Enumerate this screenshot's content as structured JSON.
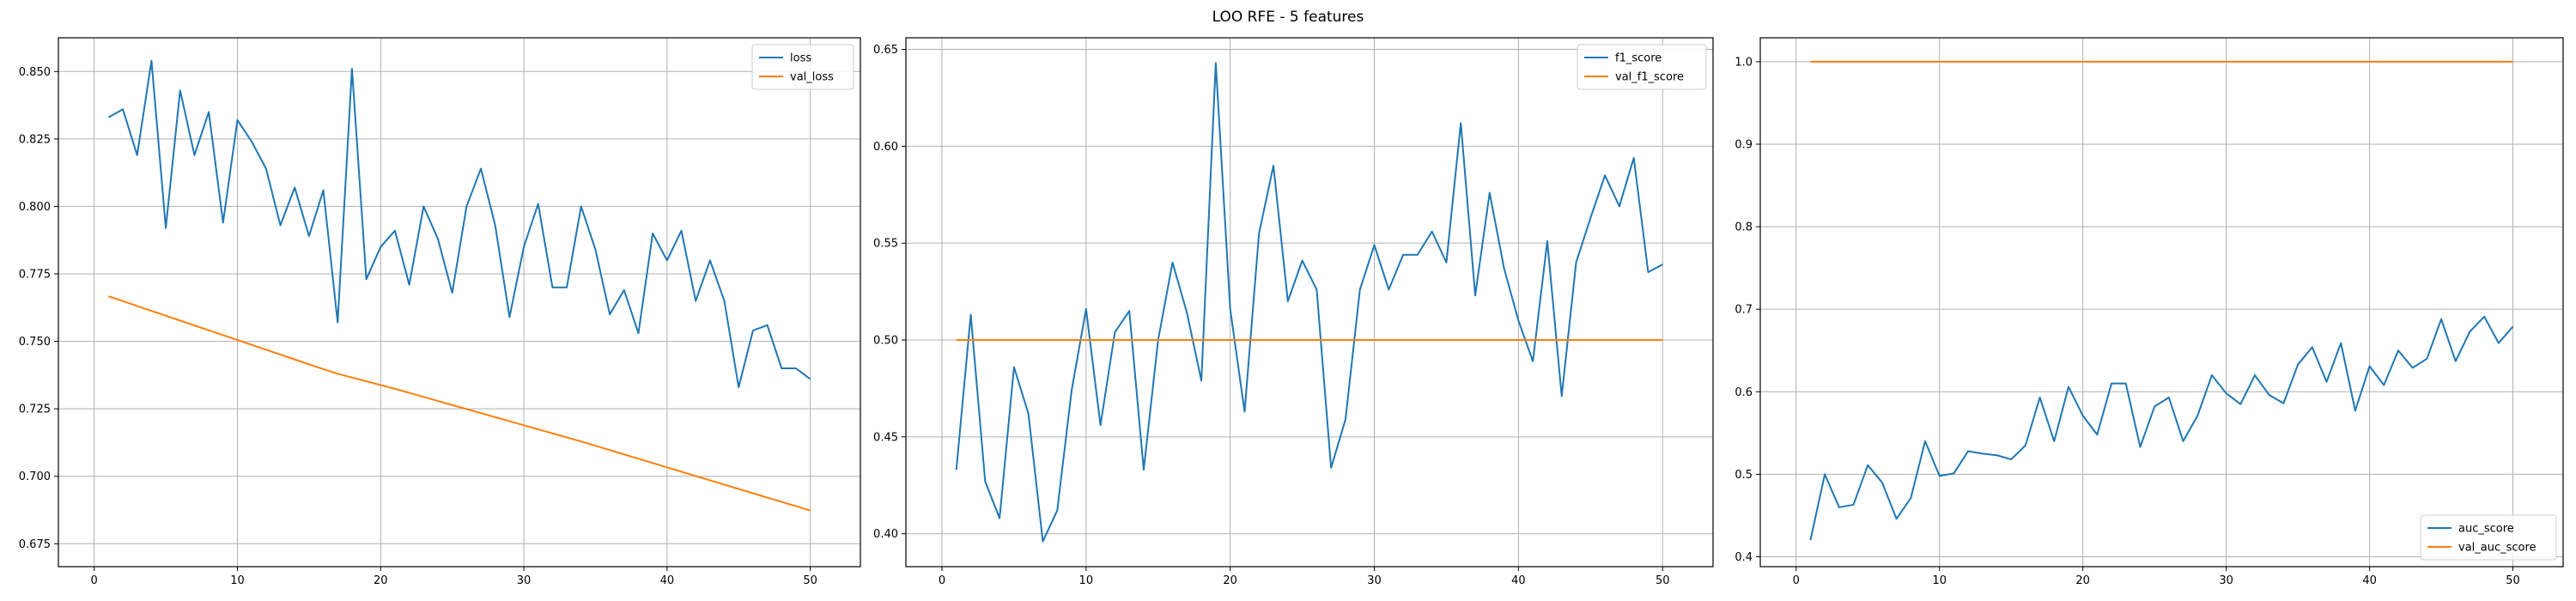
{
  "figure": {
    "title": "LOO RFE - 5 features"
  },
  "colors": {
    "train": "#1f77b4",
    "val": "#ff7f0e",
    "grid": "#b0b0b0",
    "axis": "#000000"
  },
  "chart_data": [
    {
      "type": "line",
      "title": "",
      "xlabel": "",
      "ylabel": "",
      "xlim": [
        -2.5,
        53.5
      ],
      "ylim": [
        0.6665,
        0.8625
      ],
      "xticks": [
        0,
        10,
        20,
        30,
        40,
        50
      ],
      "yticks": [
        0.675,
        0.7,
        0.725,
        0.75,
        0.775,
        0.8,
        0.825,
        0.85
      ],
      "ytick_labels": [
        "0.675",
        "0.700",
        "0.725",
        "0.750",
        "0.775",
        "0.800",
        "0.825",
        "0.850"
      ],
      "grid": true,
      "legend_loc": "top-right",
      "x": [
        1,
        2,
        3,
        4,
        5,
        6,
        7,
        8,
        9,
        10,
        11,
        12,
        13,
        14,
        15,
        16,
        17,
        18,
        19,
        20,
        21,
        22,
        23,
        24,
        25,
        26,
        27,
        28,
        29,
        30,
        31,
        32,
        33,
        34,
        35,
        36,
        37,
        38,
        39,
        40,
        41,
        42,
        43,
        44,
        45,
        46,
        47,
        48,
        49,
        50
      ],
      "series": [
        {
          "name": "loss",
          "color": "#1f77b4",
          "values": [
            0.833,
            0.836,
            0.819,
            0.854,
            0.792,
            0.843,
            0.819,
            0.835,
            0.794,
            0.832,
            0.824,
            0.814,
            0.793,
            0.807,
            0.789,
            0.806,
            0.757,
            0.851,
            0.773,
            0.785,
            0.791,
            0.771,
            0.8,
            0.788,
            0.768,
            0.8,
            0.814,
            0.793,
            0.759,
            0.785,
            0.801,
            0.77,
            0.77,
            0.8,
            0.784,
            0.76,
            0.769,
            0.753,
            0.79,
            0.78,
            0.791,
            0.765,
            0.78,
            0.765,
            0.733,
            0.754,
            0.756,
            0.74,
            0.74,
            0.736
          ]
        },
        {
          "name": "val_loss",
          "color": "#ff7f0e",
          "values": [
            0.7667,
            0.7649,
            0.7631,
            0.7613,
            0.7595,
            0.7577,
            0.7559,
            0.7541,
            0.7523,
            0.7505,
            0.7487,
            0.7469,
            0.7451,
            0.7433,
            0.7415,
            0.7397,
            0.738,
            0.7366,
            0.7352,
            0.7338,
            0.7324,
            0.7309,
            0.7294,
            0.7279,
            0.7264,
            0.7249,
            0.7234,
            0.7219,
            0.7204,
            0.7189,
            0.7174,
            0.7159,
            0.7144,
            0.7129,
            0.7113,
            0.7097,
            0.7081,
            0.7065,
            0.7049,
            0.7033,
            0.7017,
            0.7001,
            0.6985,
            0.6969,
            0.6953,
            0.6937,
            0.6921,
            0.6905,
            0.6889,
            0.6873
          ]
        }
      ]
    },
    {
      "type": "line",
      "title": "",
      "xlabel": "",
      "ylabel": "",
      "xlim": [
        -2.5,
        53.5
      ],
      "ylim": [
        0.383,
        0.656
      ],
      "xticks": [
        0,
        10,
        20,
        30,
        40,
        50
      ],
      "yticks": [
        0.4,
        0.45,
        0.5,
        0.55,
        0.6,
        0.65
      ],
      "ytick_labels": [
        "0.40",
        "0.45",
        "0.50",
        "0.55",
        "0.60",
        "0.65"
      ],
      "grid": true,
      "legend_loc": "top-right",
      "x": [
        1,
        2,
        3,
        4,
        5,
        6,
        7,
        8,
        9,
        10,
        11,
        12,
        13,
        14,
        15,
        16,
        17,
        18,
        19,
        20,
        21,
        22,
        23,
        24,
        25,
        26,
        27,
        28,
        29,
        30,
        31,
        32,
        33,
        34,
        35,
        36,
        37,
        38,
        39,
        40,
        41,
        42,
        43,
        44,
        45,
        46,
        47,
        48,
        49,
        50
      ],
      "series": [
        {
          "name": "f1_score",
          "color": "#1f77b4",
          "values": [
            0.433,
            0.513,
            0.427,
            0.408,
            0.486,
            0.462,
            0.396,
            0.412,
            0.474,
            0.516,
            0.456,
            0.504,
            0.515,
            0.433,
            0.5,
            0.54,
            0.514,
            0.479,
            0.643,
            0.516,
            0.463,
            0.555,
            0.59,
            0.52,
            0.541,
            0.526,
            0.434,
            0.459,
            0.526,
            0.549,
            0.526,
            0.544,
            0.544,
            0.556,
            0.54,
            0.612,
            0.523,
            0.576,
            0.537,
            0.51,
            0.489,
            0.551,
            0.471,
            0.54,
            0.563,
            0.585,
            0.569,
            0.594,
            0.535,
            0.539
          ]
        },
        {
          "name": "val_f1_score",
          "color": "#ff7f0e",
          "values": [
            0.5,
            0.5,
            0.5,
            0.5,
            0.5,
            0.5,
            0.5,
            0.5,
            0.5,
            0.5,
            0.5,
            0.5,
            0.5,
            0.5,
            0.5,
            0.5,
            0.5,
            0.5,
            0.5,
            0.5,
            0.5,
            0.5,
            0.5,
            0.5,
            0.5,
            0.5,
            0.5,
            0.5,
            0.5,
            0.5,
            0.5,
            0.5,
            0.5,
            0.5,
            0.5,
            0.5,
            0.5,
            0.5,
            0.5,
            0.5,
            0.5,
            0.5,
            0.5,
            0.5,
            0.5,
            0.5,
            0.5,
            0.5,
            0.5,
            0.5
          ]
        }
      ]
    },
    {
      "type": "line",
      "title": "",
      "xlabel": "",
      "ylabel": "",
      "xlim": [
        -2.5,
        53.5
      ],
      "ylim": [
        0.388,
        1.029
      ],
      "xticks": [
        0,
        10,
        20,
        30,
        40,
        50
      ],
      "yticks": [
        0.4,
        0.5,
        0.6,
        0.7,
        0.8,
        0.9,
        1.0
      ],
      "ytick_labels": [
        "0.4",
        "0.5",
        "0.6",
        "0.7",
        "0.8",
        "0.9",
        "1.0"
      ],
      "grid": true,
      "legend_loc": "bottom-right",
      "x": [
        1,
        2,
        3,
        4,
        5,
        6,
        7,
        8,
        9,
        10,
        11,
        12,
        13,
        14,
        15,
        16,
        17,
        18,
        19,
        20,
        21,
        22,
        23,
        24,
        25,
        26,
        27,
        28,
        29,
        30,
        31,
        32,
        33,
        34,
        35,
        36,
        37,
        38,
        39,
        40,
        41,
        42,
        43,
        44,
        45,
        46,
        47,
        48,
        49,
        50
      ],
      "series": [
        {
          "name": "auc_score",
          "color": "#1f77b4",
          "values": [
            0.42,
            0.5,
            0.46,
            0.463,
            0.511,
            0.49,
            0.446,
            0.471,
            0.54,
            0.498,
            0.501,
            0.528,
            0.525,
            0.523,
            0.518,
            0.535,
            0.593,
            0.54,
            0.606,
            0.571,
            0.548,
            0.61,
            0.61,
            0.533,
            0.582,
            0.593,
            0.54,
            0.571,
            0.62,
            0.598,
            0.585,
            0.62,
            0.596,
            0.586,
            0.633,
            0.654,
            0.612,
            0.659,
            0.577,
            0.631,
            0.608,
            0.65,
            0.629,
            0.64,
            0.688,
            0.637,
            0.673,
            0.691,
            0.659,
            0.679
          ]
        },
        {
          "name": "val_auc_score",
          "color": "#ff7f0e",
          "values": [
            1.0,
            1.0,
            1.0,
            1.0,
            1.0,
            1.0,
            1.0,
            1.0,
            1.0,
            1.0,
            1.0,
            1.0,
            1.0,
            1.0,
            1.0,
            1.0,
            1.0,
            1.0,
            1.0,
            1.0,
            1.0,
            1.0,
            1.0,
            1.0,
            1.0,
            1.0,
            1.0,
            1.0,
            1.0,
            1.0,
            1.0,
            1.0,
            1.0,
            1.0,
            1.0,
            1.0,
            1.0,
            1.0,
            1.0,
            1.0,
            1.0,
            1.0,
            1.0,
            1.0,
            1.0,
            1.0,
            1.0,
            1.0,
            1.0,
            1.0
          ]
        }
      ]
    }
  ]
}
